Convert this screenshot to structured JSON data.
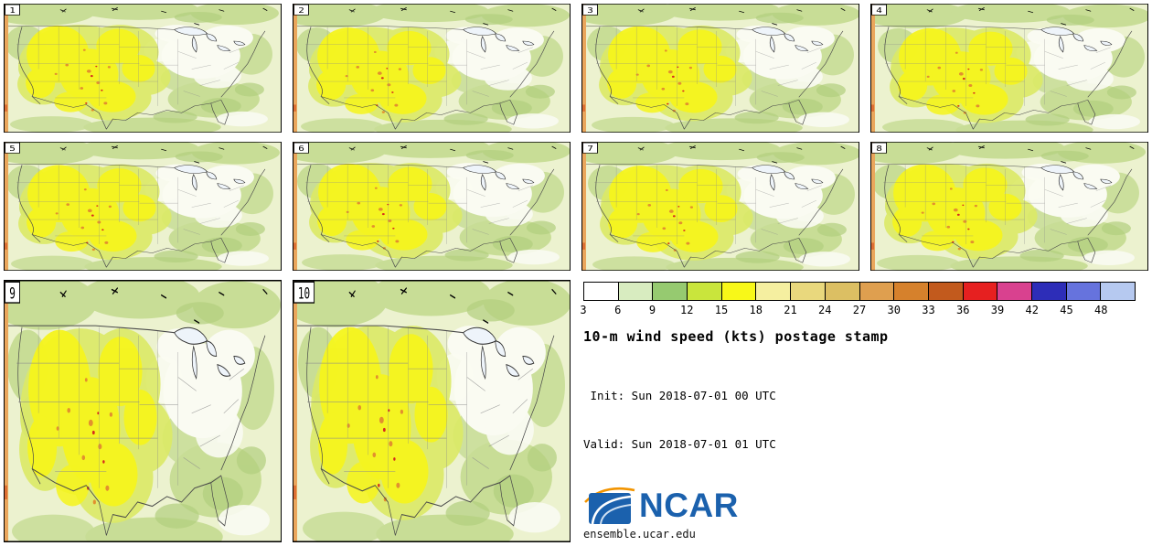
{
  "figure": {
    "title": "10-m wind speed (kts) postage stamp",
    "init_line": " Init: Sun 2018-07-01 00 UTC",
    "valid_line": "Valid: Sun 2018-07-01 01 UTC"
  },
  "panels": [
    {
      "label": "1"
    },
    {
      "label": "2"
    },
    {
      "label": "3"
    },
    {
      "label": "4"
    },
    {
      "label": "5"
    },
    {
      "label": "6"
    },
    {
      "label": "7"
    },
    {
      "label": "8"
    },
    {
      "label": "9"
    },
    {
      "label": "10"
    }
  ],
  "colorbar": {
    "ticks": [
      "3",
      "6",
      "9",
      "12",
      "15",
      "18",
      "21",
      "24",
      "27",
      "30",
      "33",
      "36",
      "39",
      "42",
      "45",
      "48"
    ],
    "colors": [
      "#ffffff",
      "#d8ecc0",
      "#96ca70",
      "#c9e53c",
      "#f8f818",
      "#f5efa0",
      "#e9d87d",
      "#dcbf63",
      "#df9f4f",
      "#d6812c",
      "#c25a1d",
      "#e62020",
      "#d9418f",
      "#2d2db8",
      "#6673dd",
      "#b6c9f0"
    ]
  },
  "branding": {
    "logo_text": "NCAR",
    "site": "ensemble.ucar.edu",
    "logo_blue": "#1b61ad",
    "logo_orange": "#f29400"
  },
  "map_palette": {
    "base": "#ecf2cf",
    "green": "#c8dd96",
    "green2": "#b2cf7e",
    "pale": "#fafbf2",
    "ygreen": "#dcea66",
    "yellow": "#f6f51d",
    "orange": "#e2902e",
    "red": "#d62b1e",
    "edge": "#eaa65c",
    "line": "#8a8a8a",
    "lake": "#eef4fa"
  }
}
